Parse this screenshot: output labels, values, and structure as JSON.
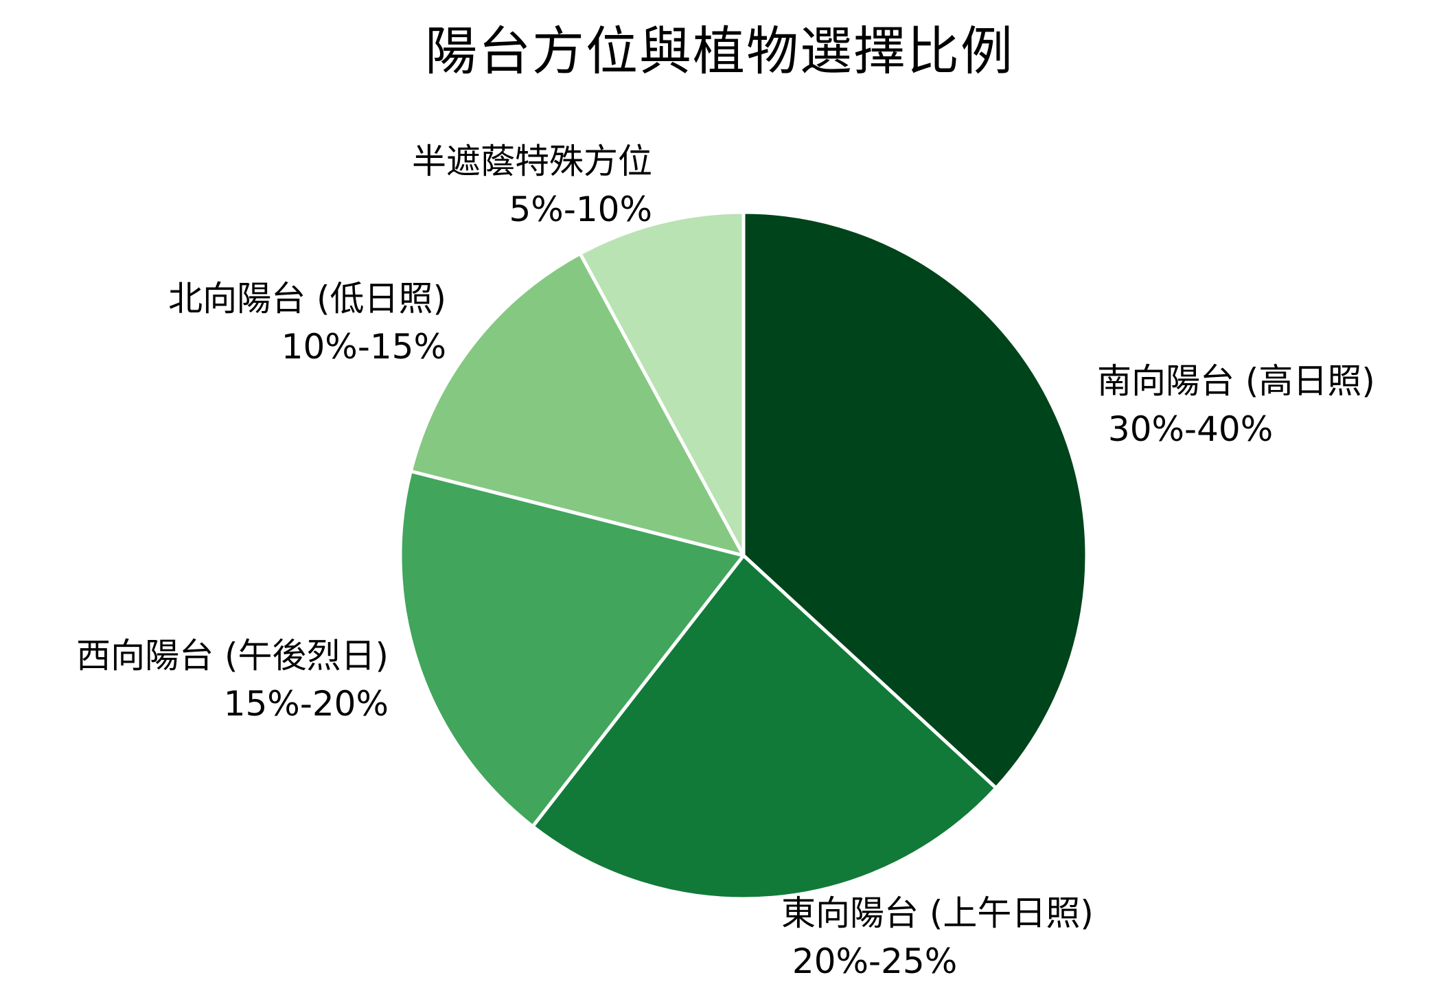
{
  "title": "陽台方位與植物選擇比例",
  "chart_data": {
    "type": "pie",
    "title": "陽台方位與植物選擇比例",
    "start_angle_deg": 90,
    "direction": "clockwise",
    "legend": "none (labels placed outside slices)",
    "slices": [
      {
        "name": "南向陽台 (高日照)",
        "range": "30%-40%",
        "value": 35.0,
        "share_pct": 36.8,
        "color": "#00441b"
      },
      {
        "name": "東向陽台 (上午日照)",
        "range": "20%-25%",
        "value": 22.5,
        "share_pct": 23.7,
        "color": "#117a38"
      },
      {
        "name": "西向陽台 (午後烈日)",
        "range": "15%-20%",
        "value": 17.5,
        "share_pct": 18.4,
        "color": "#41a55c"
      },
      {
        "name": "北向陽台 (低日照)",
        "range": "10%-15%",
        "value": 12.5,
        "share_pct": 13.2,
        "color": "#85c882"
      },
      {
        "name": "半遮蔭特殊方位",
        "range": "5%-10%",
        "value": 7.5,
        "share_pct": 7.9,
        "color": "#b9e3b2"
      }
    ],
    "categories": [
      "南向陽台 (高日照)",
      "東向陽台 (上午日照)",
      "西向陽台 (午後烈日)",
      "北向陽台 (低日照)",
      "半遮蔭特殊方位"
    ],
    "values": [
      35.0,
      22.5,
      17.5,
      12.5,
      7.5
    ]
  },
  "labels": {
    "south": {
      "name": "南向陽台 (高日照)",
      "range": " 30%-40%"
    },
    "east": {
      "name": "東向陽台 (上午日照)",
      "range": " 20%-25%"
    },
    "west": {
      "name": "西向陽台 (午後烈日)",
      "range": "15%-20%"
    },
    "north": {
      "name": "北向陽台 (低日照)",
      "range": "10%-15%"
    },
    "semi": {
      "name": "半遮蔭特殊方位",
      "range": "5%-10%"
    }
  },
  "colors": {
    "edge": "#ffffff",
    "text": "#000000",
    "background": "#ffffff"
  }
}
